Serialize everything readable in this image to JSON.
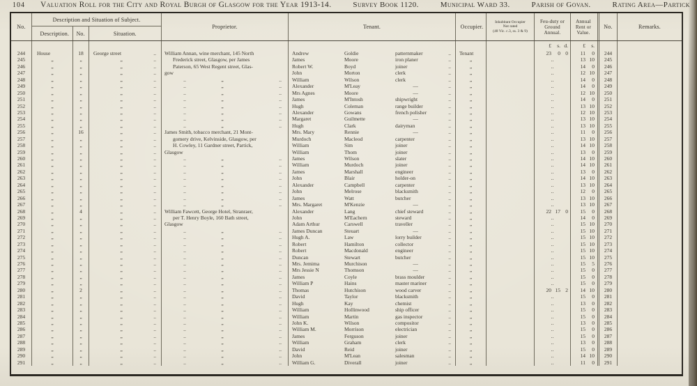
{
  "page": {
    "page_number": "104",
    "title_parts": [
      "Valuation Roll for the City and Royal Burgh of Glasgow for the Year 1913-14.",
      "Survey Book 1120.",
      "Municipal Ward 33.",
      "Parish of Govan.",
      "Rating Area—Partick"
    ]
  },
  "glyphs": {
    "dots": "..",
    "ditto": "„",
    "dash": "—"
  },
  "table": {
    "headers": {
      "no": "No.",
      "desc_group": "Description and Situation of Subject.",
      "description": "Description.",
      "sub_no": "No.",
      "situation": "Situation.",
      "proprietor": "Proprietor.",
      "tenant": "Tenant.",
      "occupier": "Occupier.",
      "inhabitant_l1": "Inhabitant Occupier",
      "inhabitant_l2": "Not rated",
      "inhabitant_l3": "(48 Vic. c.3, ss. 3 & 9)",
      "feu_duty": "Feu-duty or Ground Annual.",
      "annual_rent": "Annual Rent or Value.",
      "no2": "No.",
      "remarks": "Remarks."
    },
    "units": {
      "feu": [
        "£",
        "s.",
        "d."
      ],
      "rent": [
        "£",
        "s."
      ]
    },
    "rows": [
      {
        "no": "244",
        "desc": "House",
        "n": "18",
        "sit": "George street",
        "pk": "first",
        "prop": "William Annan, wine merchant, 145 North",
        "tf": "Andrew",
        "ts": "Goldie",
        "to": "patternmaker",
        "occr": "Tenant",
        "feu": [
          "23",
          "0",
          "0"
        ],
        "rent": [
          "11",
          "0"
        ]
      },
      {
        "no": "245",
        "pk": "indent",
        "prop": "Frederick street, Glasgow, per James",
        "tf": "James",
        "ts": "Moore",
        "to": "iron planer",
        "rent": [
          "13",
          "10"
        ]
      },
      {
        "no": "246",
        "pk": "indent",
        "prop": "Paterson, 65 West Regent street, Glas-",
        "tf": "Robert W.",
        "ts": "Boyd",
        "to": "joiner",
        "rent": [
          "14",
          "0"
        ]
      },
      {
        "no": "247",
        "pk": "flush",
        "prop": "gow",
        "tf": "John",
        "ts": "Morton",
        "to": "clerk",
        "rent": [
          "12",
          "10"
        ]
      },
      {
        "no": "248",
        "tf": "William",
        "ts": "Wilson",
        "to": "clerk",
        "rent": [
          "14",
          "0"
        ]
      },
      {
        "no": "249",
        "tf": "Alexander",
        "ts": "M'Leay",
        "to": "—",
        "rent": [
          "14",
          "0"
        ]
      },
      {
        "no": "250",
        "tf": "Mrs Agnes",
        "ts": "Moore",
        "to": "—",
        "rent": [
          "12",
          "10"
        ]
      },
      {
        "no": "251",
        "tf": "James",
        "ts": "M'Intosh",
        "to": "shipwright",
        "rent": [
          "14",
          "0"
        ]
      },
      {
        "no": "252",
        "tf": "Hugh",
        "ts": "Coleman",
        "to": "range builder",
        "rent": [
          "13",
          "10"
        ]
      },
      {
        "no": "253",
        "tf": "Alexander",
        "ts": "Gowans",
        "to": "french polisher",
        "rent": [
          "12",
          "10"
        ]
      },
      {
        "no": "254",
        "tf": "Margaret",
        "ts": "Guilmette",
        "to": "—",
        "rent": [
          "13",
          "10"
        ]
      },
      {
        "no": "255",
        "tf": "Hugh",
        "ts": "Clark",
        "to": "dairyman",
        "rent": [
          "13",
          "10"
        ]
      },
      {
        "no": "256",
        "n": "16",
        "pk": "first",
        "prop": "James Smith, tobacco merchant, 21 Mont-",
        "tf": "Mrs. Mary",
        "ts": "Rennie",
        "to": "—",
        "rent": [
          "11",
          "0"
        ]
      },
      {
        "no": "257",
        "pk": "indent",
        "prop": "gomery drive, Kelvinside, Glasgow, per",
        "tf": "Murdoch",
        "ts": "Macleod",
        "to": "carpenter",
        "rent": [
          "13",
          "10"
        ]
      },
      {
        "no": "258",
        "pk": "indent",
        "prop": "H. Cowley, 11 Gardner street, Partick,",
        "tf": "William",
        "ts": "Sim",
        "to": "joiner",
        "rent": [
          "14",
          "10"
        ]
      },
      {
        "no": "259",
        "pk": "flush",
        "prop": "Glasgow",
        "tf": "William",
        "ts": "Thom",
        "to": "joiner",
        "rent": [
          "13",
          "0"
        ]
      },
      {
        "no": "260",
        "tf": "James",
        "ts": "Wilson",
        "to": "slater",
        "rent": [
          "14",
          "10"
        ]
      },
      {
        "no": "261",
        "tf": "William",
        "ts": "Murdoch",
        "to": "joiner",
        "rent": [
          "14",
          "10"
        ]
      },
      {
        "no": "262",
        "tf": "James",
        "ts": "Marshall",
        "to": "engineer",
        "rent": [
          "13",
          "0"
        ]
      },
      {
        "no": "263",
        "tf": "John",
        "ts": "Blair",
        "to": "holder-on",
        "rent": [
          "14",
          "10"
        ]
      },
      {
        "no": "264",
        "tf": "Alexander",
        "ts": "Campbell",
        "to": "carpenter",
        "rent": [
          "13",
          "10"
        ]
      },
      {
        "no": "265",
        "tf": "John",
        "ts": "Melrose",
        "to": "blacksmith",
        "rent": [
          "12",
          "0"
        ]
      },
      {
        "no": "266",
        "tf": "James",
        "ts": "Watt",
        "to": "butcher",
        "rent": [
          "13",
          "10"
        ]
      },
      {
        "no": "267",
        "tf": "Mrs. Margaret",
        "ts": "M'Kenzie",
        "to": "—",
        "rent": [
          "13",
          "10"
        ]
      },
      {
        "no": "268",
        "n": "4",
        "pk": "first",
        "prop": "William Fawcett, George Hotel, Stranraer,",
        "tf": "Alexander",
        "ts": "Lang",
        "to": "chief steward",
        "feu": [
          "22",
          "17",
          "0"
        ],
        "rent": [
          "15",
          "0"
        ]
      },
      {
        "no": "269",
        "pk": "indent",
        "prop": "per T. Henry Boyle, 160 Bath street,",
        "tf": "John",
        "ts": "M'Eachern",
        "to": "steward",
        "rent": [
          "14",
          "0"
        ]
      },
      {
        "no": "270",
        "pk": "flush",
        "prop": "Glasgow",
        "tf": "Adam Arthur",
        "ts": "Carswell",
        "to": "traveller",
        "rent": [
          "15",
          "10"
        ]
      },
      {
        "no": "271",
        "tf": "James Duncan",
        "ts": "Steuart",
        "to": "—",
        "rent": [
          "15",
          "10"
        ]
      },
      {
        "no": "272",
        "tf": "Hugh A.",
        "ts": "Law",
        "to": "lorry builder",
        "rent": [
          "15",
          "10"
        ]
      },
      {
        "no": "273",
        "tf": "Robert",
        "ts": "Hamilton",
        "to": "collector",
        "rent": [
          "15",
          "10"
        ]
      },
      {
        "no": "274",
        "tf": "Robert",
        "ts": "Macdonald",
        "to": "engineer",
        "rent": [
          "15",
          "10"
        ]
      },
      {
        "no": "275",
        "tf": "Duncan",
        "ts": "Stewart",
        "to": "butcher",
        "rent": [
          "15",
          "10"
        ]
      },
      {
        "no": "276",
        "tf": "Mrs. Jemima",
        "ts": "Murchison",
        "to": "—",
        "rent": [
          "15",
          "5"
        ]
      },
      {
        "no": "277",
        "tf": "Mrs Jessie N",
        "ts": "Thomson",
        "to": "—",
        "rent": [
          "15",
          "0"
        ]
      },
      {
        "no": "278",
        "tf": "James",
        "ts": "Coyle",
        "to": "brass moulder",
        "rent": [
          "15",
          "0"
        ]
      },
      {
        "no": "279",
        "tf": "William P",
        "ts": "Hains",
        "to": "master mariner",
        "rent": [
          "15",
          "0"
        ]
      },
      {
        "no": "280",
        "n": "2",
        "tf": "Thomas",
        "ts": "Hutchison",
        "to": "wood carver",
        "feu": [
          "20",
          "15",
          "2"
        ],
        "rent": [
          "14",
          "10"
        ]
      },
      {
        "no": "281",
        "tf": "David",
        "ts": "Taylor",
        "to": "blacksmith",
        "rent": [
          "15",
          "0"
        ]
      },
      {
        "no": "282",
        "tf": "Hugh",
        "ts": "Kay",
        "to": "chemist",
        "rent": [
          "13",
          "0"
        ]
      },
      {
        "no": "283",
        "tf": "William",
        "ts": "Hollinwood",
        "to": "ship officer",
        "rent": [
          "15",
          "0"
        ]
      },
      {
        "no": "284",
        "tf": "William",
        "ts": "Martin",
        "to": "gas inspector",
        "rent": [
          "15",
          "0"
        ]
      },
      {
        "no": "285",
        "tf": "John K.",
        "ts": "Wilson",
        "to": "compositor",
        "rent": [
          "13",
          "0"
        ]
      },
      {
        "no": "286",
        "tf": "William M.",
        "ts": "Morrison",
        "to": "electrician",
        "rent": [
          "15",
          "0"
        ]
      },
      {
        "no": "287",
        "tf": "James",
        "ts": "Ferguson",
        "to": "joiner",
        "rent": [
          "15",
          "0"
        ]
      },
      {
        "no": "288",
        "tf": "William",
        "ts": "Graham",
        "to": "clerk",
        "rent": [
          "13",
          "0"
        ]
      },
      {
        "no": "289",
        "tf": "David",
        "ts": "Reid",
        "to": "joiner",
        "rent": [
          "15",
          "0"
        ]
      },
      {
        "no": "290",
        "tf": "John",
        "ts": "M'Lean",
        "to": "salesman",
        "rent": [
          "14",
          "10"
        ]
      },
      {
        "no": "291",
        "tf": "William G.",
        "ts": "Diverall",
        "to": "joiner",
        "rent": [
          "11",
          "0"
        ]
      }
    ]
  }
}
